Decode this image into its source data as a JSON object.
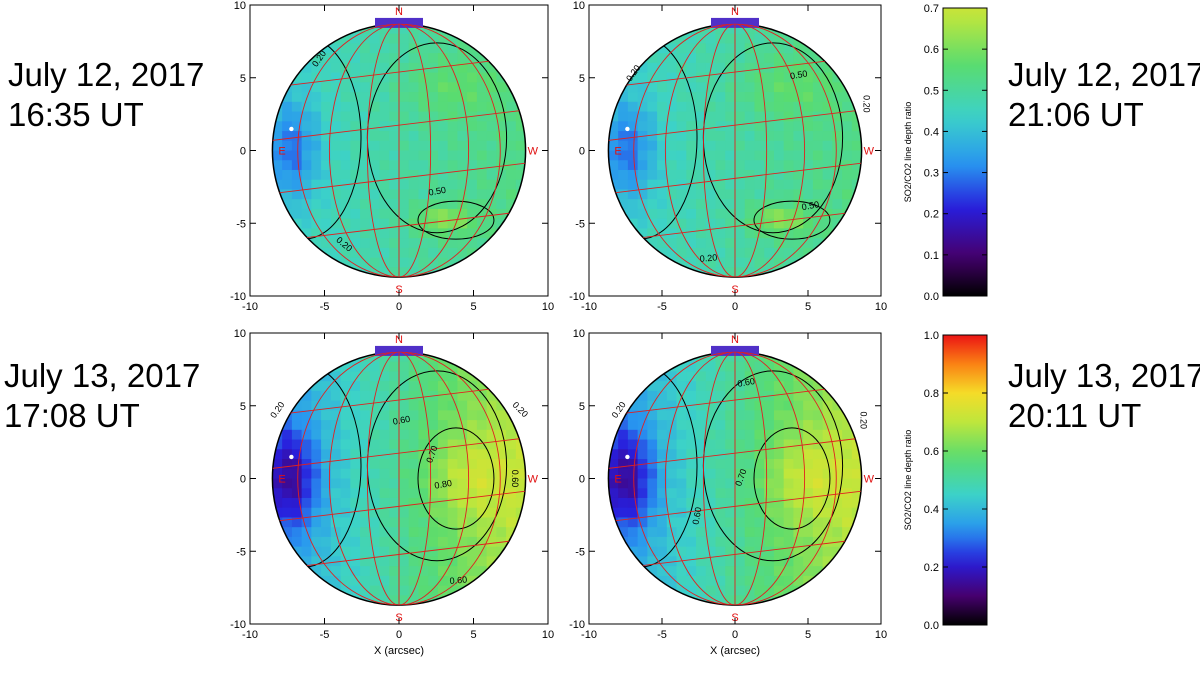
{
  "labels": {
    "top_left": [
      "July 12, 2017",
      "16:35 UT"
    ],
    "top_right": [
      "July 12, 2017",
      "21:06 UT"
    ],
    "bottom_left": [
      "July 13, 2017",
      "17:08 UT"
    ],
    "bottom_right": [
      "July 13, 2017",
      "20:11 UT"
    ]
  },
  "compass": {
    "north": "N",
    "south": "S",
    "east": "E",
    "west": "W"
  },
  "colors": {
    "contour": "#000000",
    "grid": "#e02020",
    "compass": "#e01010"
  },
  "chart_data": [
    {
      "type": "heatmap",
      "title": "",
      "xlabel": "",
      "xlim": [
        -10,
        10
      ],
      "ylim": [
        -10,
        10
      ],
      "x_ticks": [
        "-10",
        "-5",
        "0",
        "5",
        "10"
      ],
      "y_ticks": [
        "10",
        "5",
        "0",
        "-5",
        "-10"
      ],
      "contour_labels": [
        "0.20",
        "0.50",
        "0.20"
      ],
      "colorbar_group": 0
    },
    {
      "type": "heatmap",
      "title": "",
      "xlabel": "",
      "xlim": [
        -10,
        10
      ],
      "ylim": [
        -10,
        10
      ],
      "x_ticks": [
        "-10",
        "-5",
        "0",
        "5",
        "10"
      ],
      "y_ticks": [
        "10",
        "5",
        "0",
        "-5",
        "-10"
      ],
      "contour_labels": [
        "0.20",
        "0.50",
        "0.20",
        "0.50",
        "0.20"
      ],
      "colorbar_group": 0
    },
    {
      "type": "heatmap",
      "title": "",
      "xlabel": "X (arcsec)",
      "xlim": [
        -10,
        10
      ],
      "ylim": [
        -10,
        10
      ],
      "x_ticks": [
        "-10",
        "-5",
        "0",
        "5",
        "10"
      ],
      "y_ticks": [
        "10",
        "5",
        "0",
        "-5",
        "-10"
      ],
      "contour_labels": [
        "0.20",
        "0.60",
        "0.70",
        "0.80",
        "0.60",
        "0.60",
        "0.20"
      ],
      "colorbar_group": 1
    },
    {
      "type": "heatmap",
      "title": "",
      "xlabel": "X (arcsec)",
      "xlim": [
        -10,
        10
      ],
      "ylim": [
        -10,
        10
      ],
      "x_ticks": [
        "-10",
        "-5",
        "0",
        "5",
        "10"
      ],
      "y_ticks": [
        "10",
        "5",
        "0",
        "-5",
        "-10"
      ],
      "contour_labels": [
        "0.20",
        "0.60",
        "0.70",
        "0.60",
        "0.20"
      ],
      "colorbar_group": 1
    }
  ],
  "colorbars": [
    {
      "label": "SO2/CO2 line depth ratio",
      "range": [
        0,
        0.7
      ],
      "ticks": [
        "0.0",
        "0.1",
        "0.2",
        "0.3",
        "0.4",
        "0.5",
        "0.6",
        "0.7"
      ]
    },
    {
      "label": "SO2/CO2 line depth ratio",
      "range": [
        0,
        1.0
      ],
      "ticks": [
        "0.0",
        "0.2",
        "0.4",
        "0.6",
        "0.8",
        "1.0"
      ]
    }
  ]
}
